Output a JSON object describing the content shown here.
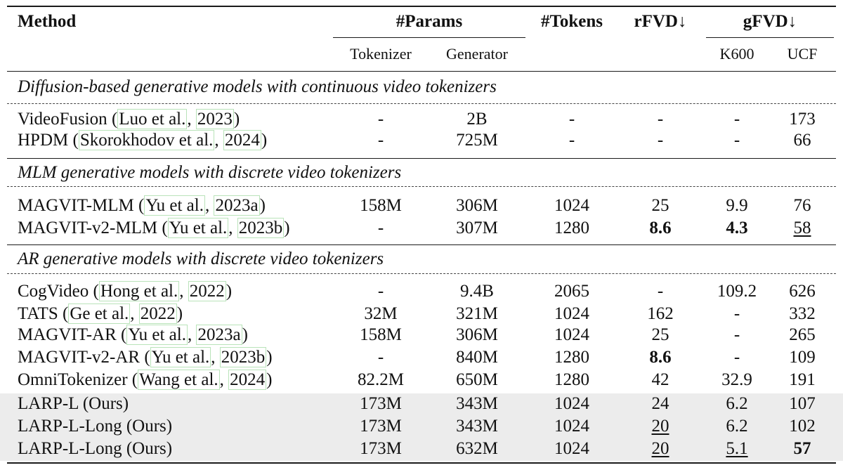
{
  "header": {
    "method": "Method",
    "params": "#Params",
    "tokens": "#Tokens",
    "rfvd": "rFVD↓",
    "gfvd": "gFVD↓",
    "tokenizer": "Tokenizer",
    "generator": "Generator",
    "k600": "K600",
    "ucf": "UCF"
  },
  "sections": [
    {
      "title": "Diffusion-based generative models with continuous video tokenizers",
      "rows": [
        {
          "name": "VideoFusion",
          "cite_authors": "Luo et al.",
          "cite_year": "2023",
          "tokenizer": "-",
          "generator": "2B",
          "tokens": "-",
          "rfvd": "-",
          "k600": "-",
          "ucf": "173"
        },
        {
          "name": "HPDM",
          "cite_authors": "Skorokhodov et al.",
          "cite_year": "2024",
          "tokenizer": "-",
          "generator": "725M",
          "tokens": "-",
          "rfvd": "-",
          "k600": "-",
          "ucf": "66"
        }
      ]
    },
    {
      "title": "MLM generative models with discrete video tokenizers",
      "rows": [
        {
          "name": "MAGVIT-MLM",
          "cite_authors": "Yu et al.",
          "cite_year": "2023a",
          "tokenizer": "158M",
          "generator": "306M",
          "tokens": "1024",
          "rfvd": "25",
          "k600": "9.9",
          "ucf": "76"
        },
        {
          "name": "MAGVIT-v2-MLM",
          "cite_authors": "Yu et al.",
          "cite_year": "2023b",
          "tokenizer": "-",
          "generator": "307M",
          "tokens": "1280",
          "rfvd": "8.6",
          "k600": "4.3",
          "ucf": "58"
        }
      ]
    },
    {
      "title": "AR generative models with discrete video tokenizers",
      "rows": [
        {
          "name": "CogVideo",
          "cite_authors": "Hong et al.",
          "cite_year": "2022",
          "tokenizer": "-",
          "generator": "9.4B",
          "tokens": "2065",
          "rfvd": "-",
          "k600": "109.2",
          "ucf": "626"
        },
        {
          "name": "TATS",
          "cite_authors": "Ge et al.",
          "cite_year": "2022",
          "tokenizer": "32M",
          "generator": "321M",
          "tokens": "1024",
          "rfvd": "162",
          "k600": "-",
          "ucf": "332"
        },
        {
          "name": "MAGVIT-AR",
          "cite_authors": "Yu et al.",
          "cite_year": "2023a",
          "tokenizer": "158M",
          "generator": "306M",
          "tokens": "1024",
          "rfvd": "25",
          "k600": "-",
          "ucf": "265"
        },
        {
          "name": "MAGVIT-v2-AR",
          "cite_authors": "Yu et al.",
          "cite_year": "2023b",
          "tokenizer": "-",
          "generator": "840M",
          "tokens": "1280",
          "rfvd": "8.6",
          "k600": "-",
          "ucf": "109"
        },
        {
          "name": "OmniTokenizer",
          "cite_authors": "Wang et al.",
          "cite_year": "2024",
          "tokenizer": "82.2M",
          "generator": "650M",
          "tokens": "1280",
          "rfvd": "42",
          "k600": "32.9",
          "ucf": "191"
        },
        {
          "name": "LARP-L (Ours)",
          "tokenizer": "173M",
          "generator": "343M",
          "tokens": "1024",
          "rfvd": "24",
          "k600": "6.2",
          "ucf": "107"
        },
        {
          "name": "LARP-L-Long (Ours)",
          "tokenizer": "173M",
          "generator": "343M",
          "tokens": "1024",
          "rfvd": "20",
          "k600": "6.2",
          "ucf": "102"
        },
        {
          "name": "LARP-L-Long (Ours)",
          "tokenizer": "173M",
          "generator": "632M",
          "tokens": "1024",
          "rfvd": "20",
          "k600": "5.1",
          "ucf": "57"
        }
      ]
    }
  ]
}
